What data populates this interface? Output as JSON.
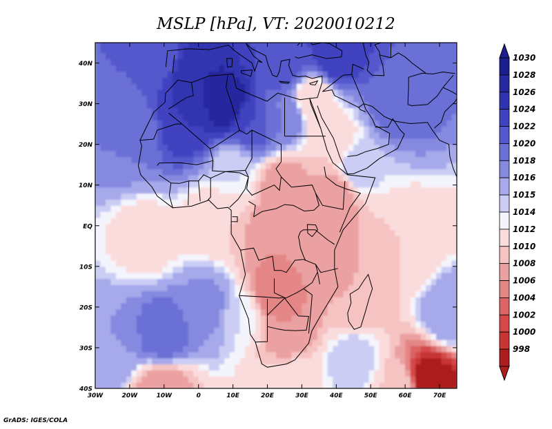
{
  "chart_data": {
    "type": "heatmap",
    "title": "MSLP [hPa], VT: 2020010212",
    "variable": "MSLP",
    "units": "hPa",
    "valid_time": "2020010212",
    "x_axis": {
      "range": [
        -30,
        75
      ],
      "ticks": [
        {
          "value": -30,
          "label": "30W"
        },
        {
          "value": -20,
          "label": "20W"
        },
        {
          "value": -10,
          "label": "10W"
        },
        {
          "value": 0,
          "label": "0"
        },
        {
          "value": 10,
          "label": "10E"
        },
        {
          "value": 20,
          "label": "20E"
        },
        {
          "value": 30,
          "label": "30E"
        },
        {
          "value": 40,
          "label": "40E"
        },
        {
          "value": 50,
          "label": "50E"
        },
        {
          "value": 60,
          "label": "60E"
        },
        {
          "value": 70,
          "label": "70E"
        }
      ]
    },
    "y_axis": {
      "range": [
        -40,
        45
      ],
      "ticks": [
        {
          "value": 40,
          "label": "40N"
        },
        {
          "value": 30,
          "label": "30N"
        },
        {
          "value": 20,
          "label": "20N"
        },
        {
          "value": 10,
          "label": "10N"
        },
        {
          "value": 0,
          "label": "EQ"
        },
        {
          "value": -10,
          "label": "10S"
        },
        {
          "value": -20,
          "label": "20S"
        },
        {
          "value": -30,
          "label": "30S"
        },
        {
          "value": -40,
          "label": "40S"
        }
      ]
    },
    "colorbar": {
      "levels": [
        {
          "label": "1030",
          "color": "#1c1e8e"
        },
        {
          "label": "1028",
          "color": "#26289e"
        },
        {
          "label": "1026",
          "color": "#3134b0"
        },
        {
          "label": "1024",
          "color": "#3f43c0"
        },
        {
          "label": "1022",
          "color": "#5458cc"
        },
        {
          "label": "1020",
          "color": "#6b6fd6"
        },
        {
          "label": "1018",
          "color": "#8589e0"
        },
        {
          "label": "1016",
          "color": "#a6a9ea"
        },
        {
          "label": "1015",
          "color": "#cbcdf4"
        },
        {
          "label": "1014",
          "color": "#f4f4fc"
        },
        {
          "label": "1012",
          "color": "#fbdcdc"
        },
        {
          "label": "1010",
          "color": "#f6c3c3"
        },
        {
          "label": "1008",
          "color": "#eba1a1"
        },
        {
          "label": "1006",
          "color": "#e48686"
        },
        {
          "label": "1004",
          "color": "#dc6464"
        },
        {
          "label": "1002",
          "color": "#d44848"
        },
        {
          "label": "1000",
          "color": "#c83535"
        },
        {
          "label": "998",
          "color": "#ad1d1d"
        }
      ],
      "extend": "both"
    },
    "field": [
      {
        "lon": -14,
        "lat": 43,
        "value": 1022
      },
      {
        "lon": 0,
        "lat": 36,
        "value": 1028
      },
      {
        "lon": 8,
        "lat": 30,
        "value": 1030
      },
      {
        "lon": -3,
        "lat": 25,
        "value": 1026
      },
      {
        "lon": 15,
        "lat": 25,
        "value": 1024
      },
      {
        "lon": 25,
        "lat": 27,
        "value": 1020
      },
      {
        "lon": 25,
        "lat": 40,
        "value": 1024
      },
      {
        "lon": 40,
        "lat": 42,
        "value": 1026
      },
      {
        "lon": 58,
        "lat": 31,
        "value": 1022
      },
      {
        "lon": 46,
        "lat": 14,
        "value": 1016
      },
      {
        "lon": -20,
        "lat": 22,
        "value": 1020
      },
      {
        "lon": 10,
        "lat": 14,
        "value": 1015
      },
      {
        "lon": 33,
        "lat": 31,
        "value": 1012
      },
      {
        "lon": 38,
        "lat": 21,
        "value": 1012
      },
      {
        "lon": 25,
        "lat": 10,
        "value": 1008
      },
      {
        "lon": 40,
        "lat": 8,
        "value": 1008
      },
      {
        "lon": 22,
        "lat": -2,
        "value": 1008
      },
      {
        "lon": 36,
        "lat": -7,
        "value": 1009
      },
      {
        "lon": 22,
        "lat": -16,
        "value": 1006
      },
      {
        "lon": 26,
        "lat": -25,
        "value": 1008
      },
      {
        "lon": 45,
        "lat": -18,
        "value": 1010
      },
      {
        "lon": 5,
        "lat": 2,
        "value": 1012
      },
      {
        "lon": -15,
        "lat": -3,
        "value": 1013
      },
      {
        "lon": 60,
        "lat": -5,
        "value": 1012
      },
      {
        "lon": 12,
        "lat": -22,
        "value": 1015
      },
      {
        "lon": -10,
        "lat": -27,
        "value": 1022
      },
      {
        "lon": 3,
        "lat": -20,
        "value": 1019
      },
      {
        "lon": 45,
        "lat": -33,
        "value": 1016
      },
      {
        "lon": 73,
        "lat": -22,
        "value": 1018
      },
      {
        "lon": -25,
        "lat": -30,
        "value": 1018
      },
      {
        "lon": 58,
        "lat": -40,
        "value": 1012
      },
      {
        "lon": 67,
        "lat": -38,
        "value": 998
      },
      {
        "lon": -10,
        "lat": -40,
        "value": 1008
      },
      {
        "lon": 28,
        "lat": -40,
        "value": 1014
      }
    ],
    "footer": "GrADS: IGES/COLA"
  }
}
